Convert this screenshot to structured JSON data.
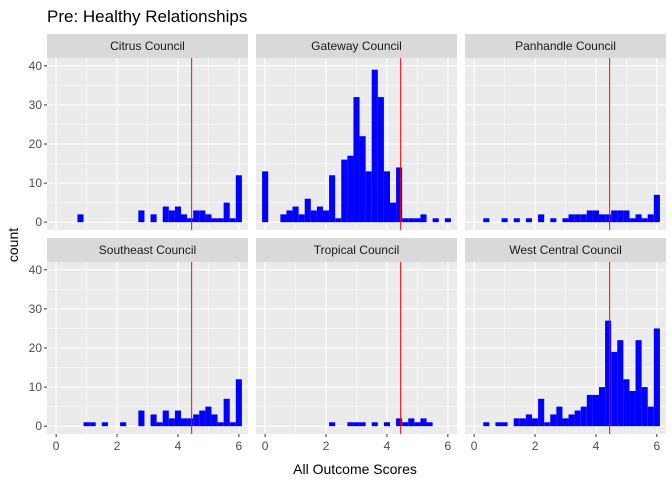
{
  "chart_data": {
    "type": "bar",
    "title": "Pre: Healthy Relationships",
    "xlabel": "All Outcome Scores",
    "ylabel": "count",
    "xlim": [
      -0.3,
      6.3
    ],
    "ylim": [
      -2,
      42
    ],
    "xticks": [
      0,
      2,
      4,
      6
    ],
    "yticks": [
      0,
      10,
      20,
      30,
      40
    ],
    "bin_width": 0.2,
    "vline_x": 4.45,
    "colors": {
      "bar": "#0000ff",
      "vline": "#ff0000",
      "panel_bg": "#ebebeb",
      "strip_bg": "#d9d9d9",
      "grid": "#ffffff"
    },
    "panels": [
      {
        "name": "Citrus Council",
        "x": [
          0.8,
          2.8,
          3.2,
          3.6,
          3.8,
          4.0,
          4.2,
          4.4,
          4.6,
          4.8,
          5.0,
          5.2,
          5.4,
          5.6,
          5.8,
          6.0
        ],
        "count": [
          2,
          3,
          2,
          4,
          3,
          4,
          2,
          1,
          3,
          3,
          2,
          1,
          1,
          5,
          1,
          12
        ]
      },
      {
        "name": "Gateway Council",
        "x": [
          0.0,
          0.6,
          0.8,
          1.0,
          1.2,
          1.4,
          1.6,
          1.8,
          2.0,
          2.2,
          2.4,
          2.6,
          2.8,
          3.0,
          3.2,
          3.4,
          3.6,
          3.8,
          4.0,
          4.2,
          4.4,
          4.6,
          4.8,
          5.0,
          5.2,
          5.6,
          6.0
        ],
        "count": [
          13,
          2,
          3,
          4,
          2,
          6,
          3,
          4,
          3,
          12,
          1,
          16,
          17,
          32,
          22,
          13,
          39,
          32,
          13,
          5,
          14,
          1,
          1,
          1,
          2,
          1,
          1
        ]
      },
      {
        "name": "Panhandle Council",
        "x": [
          0.4,
          1.0,
          1.4,
          1.8,
          2.2,
          2.6,
          3.0,
          3.2,
          3.4,
          3.6,
          3.8,
          4.0,
          4.2,
          4.4,
          4.6,
          4.8,
          5.0,
          5.2,
          5.4,
          5.6,
          5.8,
          6.0
        ],
        "count": [
          1,
          1,
          1,
          1,
          2,
          1,
          1,
          2,
          2,
          2,
          3,
          3,
          2,
          2,
          3,
          3,
          3,
          1,
          2,
          1,
          2,
          7
        ]
      },
      {
        "name": "Southeast Council",
        "x": [
          1.0,
          1.2,
          1.6,
          2.2,
          2.8,
          3.2,
          3.4,
          3.6,
          3.8,
          4.0,
          4.2,
          4.4,
          4.6,
          4.8,
          5.0,
          5.2,
          5.4,
          5.6,
          5.8,
          6.0
        ],
        "count": [
          1,
          1,
          1,
          1,
          4,
          3,
          1,
          4,
          2,
          4,
          2,
          2,
          3,
          4,
          5,
          3,
          1,
          7,
          1,
          12
        ]
      },
      {
        "name": "Tropical Council",
        "x": [
          2.2,
          2.8,
          3.0,
          3.2,
          3.6,
          4.0,
          4.4,
          4.6,
          4.8,
          5.0,
          5.2,
          5.4
        ],
        "count": [
          1,
          1,
          1,
          1,
          1,
          1,
          2,
          1,
          2,
          1,
          2,
          1
        ]
      },
      {
        "name": "West Central Council",
        "x": [
          0.4,
          0.8,
          1.0,
          1.4,
          1.6,
          1.8,
          2.0,
          2.2,
          2.4,
          2.6,
          2.8,
          3.0,
          3.2,
          3.4,
          3.6,
          3.8,
          4.0,
          4.2,
          4.4,
          4.6,
          4.8,
          5.0,
          5.2,
          5.4,
          5.6,
          5.8,
          6.0
        ],
        "count": [
          1,
          1,
          1,
          2,
          2,
          3,
          2,
          7,
          1,
          3,
          5,
          2,
          3,
          4,
          5,
          8,
          8,
          10,
          27,
          19,
          22,
          12,
          9,
          22,
          10,
          5,
          25
        ]
      }
    ]
  }
}
